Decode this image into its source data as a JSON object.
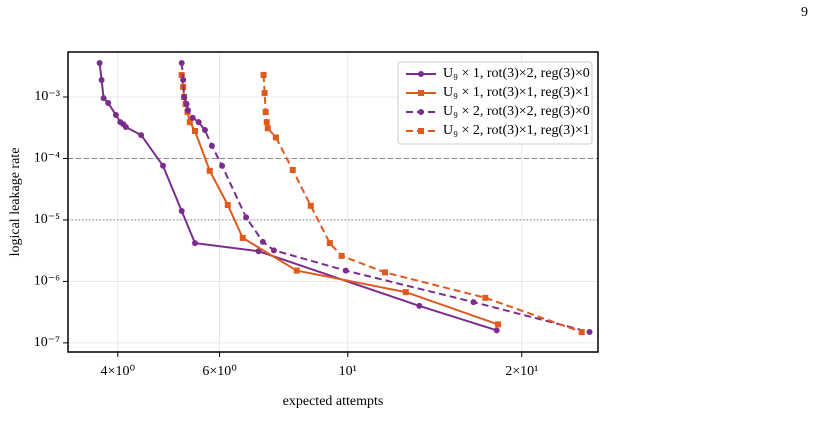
{
  "page_number": "9",
  "chart_data": {
    "type": "line",
    "xlabel": "expected attempts",
    "ylabel": "logical leakage rate",
    "xscale": "log",
    "yscale": "log",
    "grid": true,
    "legend": "upper right",
    "xlim": [
      3.28,
      27.1
    ],
    "ylim": [
      7.1e-08,
      0.0054
    ],
    "xticks": [
      {
        "value": 4,
        "label": "4×10⁰"
      },
      {
        "value": 6,
        "label": "6×10⁰"
      },
      {
        "value": 10,
        "label": "10¹"
      },
      {
        "value": 20,
        "label": "2×10¹"
      }
    ],
    "yticks": [
      {
        "value": 1e-07,
        "label": "10⁻⁷"
      },
      {
        "value": 1e-06,
        "label": "10⁻⁶"
      },
      {
        "value": 1e-05,
        "label": "10⁻⁵"
      },
      {
        "value": 0.0001,
        "label": "10⁻⁴"
      },
      {
        "value": 0.001,
        "label": "10⁻³"
      }
    ],
    "hlines": [
      {
        "value": 0.0001,
        "style": "dashed"
      },
      {
        "value": 1e-05,
        "style": "dotted"
      }
    ],
    "series": [
      {
        "name": "U₉ × 1, rot(3)×2, reg(3)×0",
        "color": "#7b2d8e",
        "marker": "circle",
        "linestyle": "solid",
        "x": [
          3.72,
          3.75,
          3.78,
          3.85,
          3.97,
          4.04,
          4.09,
          4.13,
          4.39,
          4.79,
          5.16,
          5.44,
          7.01,
          13.3,
          18.1
        ],
        "values": [
          0.00357,
          0.00189,
          0.00096,
          0.0008,
          0.00051,
          0.00039,
          0.00036,
          0.000325,
          0.00024,
          7.6e-05,
          1.4e-05,
          4.2e-06,
          3.1e-06,
          4e-07,
          1.6e-07
        ]
      },
      {
        "name": "U₉ × 1, rot(3)×1, reg(3)×1",
        "color": "#e05a1e",
        "marker": "square",
        "linestyle": "solid",
        "x": [
          5.16,
          5.19,
          5.21,
          5.24,
          5.28,
          5.33,
          5.44,
          5.77,
          6.2,
          6.58,
          8.16,
          12.6,
          18.2
        ],
        "values": [
          0.00228,
          0.00146,
          0.001,
          0.00077,
          0.00057,
          0.00039,
          0.00028,
          6.3e-05,
          1.75e-05,
          5.1e-06,
          1.5e-06,
          6.7e-07,
          2e-07
        ]
      },
      {
        "name": "U₉ × 2, rot(3)×2, reg(3)×0",
        "color": "#7b2d8e",
        "marker": "circle",
        "linestyle": "dashed",
        "x": [
          5.16,
          5.19,
          5.21,
          5.26,
          5.29,
          5.39,
          5.52,
          5.66,
          5.82,
          6.06,
          6.67,
          7.13,
          7.45,
          9.92,
          16.5,
          26.2
        ],
        "values": [
          0.00357,
          0.00189,
          0.001,
          0.00077,
          0.00061,
          0.00046,
          0.00039,
          0.00029,
          0.00016,
          7.6e-05,
          1.1e-05,
          4.4e-06,
          3.2e-06,
          1.5e-06,
          4.6e-07,
          1.5e-07
        ]
      },
      {
        "name": "U₉ × 2, rot(3)×1, reg(3)×1",
        "color": "#e05a1e",
        "marker": "square",
        "linestyle": "dashed",
        "x": [
          7.15,
          7.18,
          7.21,
          7.24,
          7.27,
          7.51,
          8.03,
          8.63,
          9.31,
          9.76,
          11.6,
          17.3,
          25.4
        ],
        "values": [
          0.00228,
          0.00116,
          0.00057,
          0.00039,
          0.00031,
          0.00022,
          6.5e-05,
          1.7e-05,
          4.2e-06,
          2.6e-06,
          1.4e-06,
          5.4e-07,
          1.5e-07
        ]
      }
    ]
  }
}
